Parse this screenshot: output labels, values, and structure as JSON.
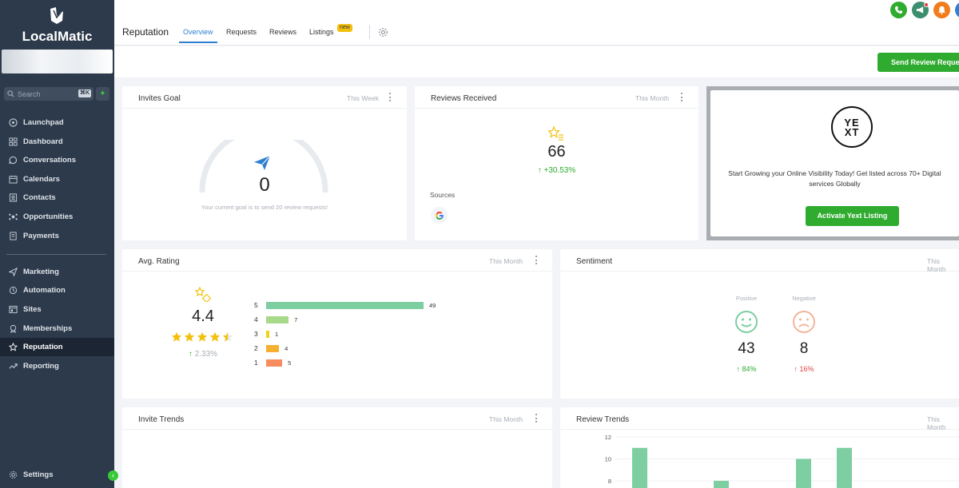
{
  "app": {
    "brand": "LocalMatic"
  },
  "sidebar": {
    "search_placeholder": "Search",
    "search_shortcut": "⌘K",
    "items": [
      {
        "label": "Launchpad",
        "icon": "launchpad-icon"
      },
      {
        "label": "Dashboard",
        "icon": "dashboard-icon"
      },
      {
        "label": "Conversations",
        "icon": "chat-icon"
      },
      {
        "label": "Calendars",
        "icon": "calendar-icon"
      },
      {
        "label": "Contacts",
        "icon": "contacts-icon"
      },
      {
        "label": "Opportunities",
        "icon": "opportunities-icon"
      },
      {
        "label": "Payments",
        "icon": "payments-icon"
      },
      {
        "label": "Marketing",
        "icon": "send-icon"
      },
      {
        "label": "Automation",
        "icon": "automation-icon"
      },
      {
        "label": "Sites",
        "icon": "sites-icon"
      },
      {
        "label": "Memberships",
        "icon": "membership-icon"
      },
      {
        "label": "Reputation",
        "icon": "star-icon",
        "active": true
      },
      {
        "label": "Reporting",
        "icon": "trend-icon"
      }
    ],
    "settings_label": "Settings"
  },
  "header": {
    "title": "Reputation",
    "tabs": [
      {
        "label": "Overview",
        "active": true
      },
      {
        "label": "Requests"
      },
      {
        "label": "Reviews"
      },
      {
        "label": "Listings",
        "badge": "new"
      }
    ]
  },
  "actions": {
    "send_review_request": "Send Review Request"
  },
  "invites_goal": {
    "title": "Invites Goal",
    "period": "This Week",
    "value": "0",
    "note": "Your current goal is to send 20 review requests!"
  },
  "reviews_received": {
    "title": "Reviews Received",
    "period": "This Month",
    "value": "66",
    "change": "+30.53%",
    "sources_label": "Sources",
    "sources": [
      "google-icon"
    ]
  },
  "yext": {
    "logo_text": "YEXT",
    "promo": "Start Growing your Online Visibility Today! Get listed across 70+ Digital services Globally",
    "cta": "Activate Yext Listing"
  },
  "avg_rating": {
    "title": "Avg. Rating",
    "period": "This Month",
    "value": "4.4",
    "stars": 4.5,
    "change": "2.33%",
    "bars": [
      {
        "star": "5",
        "count": "49",
        "color": "#7dcea0"
      },
      {
        "star": "4",
        "count": "7",
        "color": "#a8d98a"
      },
      {
        "star": "3",
        "count": "1",
        "color": "#f2d21b"
      },
      {
        "star": "2",
        "count": "4",
        "color": "#f5b031"
      },
      {
        "star": "1",
        "count": "5",
        "color": "#f78d5e"
      }
    ]
  },
  "sentiment": {
    "title": "Sentiment",
    "period": "This Month",
    "positive": {
      "label": "Positive",
      "value": "43",
      "change": "84%"
    },
    "negative": {
      "label": "Negative",
      "value": "8",
      "change": "16%"
    }
  },
  "invite_trends": {
    "title": "Invite Trends",
    "period": "This Month"
  },
  "review_trends": {
    "title": "Review Trends",
    "period": "This Month",
    "y_ticks": [
      "12",
      "10",
      "8"
    ]
  },
  "chart_data": {
    "type": "bar",
    "title": "Review Trends",
    "yticks": [
      8,
      10,
      12
    ],
    "values": [
      11,
      8,
      10,
      11
    ]
  },
  "colors": {
    "accent": "#2f7fd1",
    "success": "#2fab2f",
    "sidebar": "#2d3a4b"
  }
}
